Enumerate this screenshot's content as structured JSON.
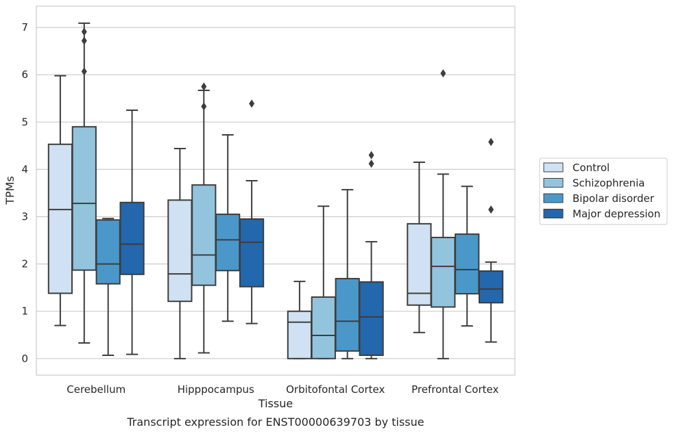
{
  "chart_data": {
    "type": "box",
    "caption": "Transcript expression for ENST00000639703 by tissue",
    "xlabel": "Tissue",
    "ylabel": "TPMs",
    "ylim": [
      -0.35,
      7.45
    ],
    "yticks": [
      0,
      1,
      2,
      3,
      4,
      5,
      6,
      7
    ],
    "grid": "horizontal",
    "legend_position": "right",
    "categories": [
      "Cerebellum",
      "Hipppocampus",
      "Orbitofontal Cortex",
      "Prefrontal Cortex"
    ],
    "series": [
      {
        "name": "Control",
        "color": "#cfe1f2",
        "boxes": [
          {
            "whislo": 0.7,
            "q1": 1.38,
            "med": 3.15,
            "q3": 4.53,
            "whishi": 5.98,
            "fliers": []
          },
          {
            "whislo": 0.0,
            "q1": 1.21,
            "med": 1.79,
            "q3": 3.35,
            "whishi": 4.44,
            "fliers": []
          },
          {
            "whislo": 0.0,
            "q1": 0.0,
            "med": 0.77,
            "q3": 1.0,
            "whishi": 1.63,
            "fliers": []
          },
          {
            "whislo": 0.55,
            "q1": 1.13,
            "med": 1.38,
            "q3": 2.85,
            "whishi": 4.15,
            "fliers": []
          }
        ]
      },
      {
        "name": "Schizophrenia",
        "color": "#93c4de",
        "boxes": [
          {
            "whislo": 0.33,
            "q1": 1.87,
            "med": 3.28,
            "q3": 4.9,
            "whishi": 7.09,
            "fliers": [
              6.07,
              6.72,
              6.91
            ]
          },
          {
            "whislo": 0.12,
            "q1": 1.55,
            "med": 2.19,
            "q3": 3.67,
            "whishi": 5.67,
            "fliers": [
              5.33,
              5.75
            ]
          },
          {
            "whislo": 0.0,
            "q1": 0.0,
            "med": 0.49,
            "q3": 1.3,
            "whishi": 3.22,
            "fliers": []
          },
          {
            "whislo": 0.0,
            "q1": 1.09,
            "med": 1.95,
            "q3": 2.56,
            "whishi": 3.9,
            "fliers": [
              6.03
            ]
          }
        ]
      },
      {
        "name": "Bipolar disorder",
        "color": "#4a98c9",
        "boxes": [
          {
            "whislo": 0.07,
            "q1": 1.58,
            "med": 2.0,
            "q3": 2.93,
            "whishi": 2.96,
            "fliers": []
          },
          {
            "whislo": 0.79,
            "q1": 1.86,
            "med": 2.51,
            "q3": 3.05,
            "whishi": 4.73,
            "fliers": []
          },
          {
            "whislo": 0.0,
            "q1": 0.16,
            "med": 0.79,
            "q3": 1.69,
            "whishi": 3.57,
            "fliers": []
          },
          {
            "whislo": 0.69,
            "q1": 1.37,
            "med": 1.88,
            "q3": 2.63,
            "whishi": 3.64,
            "fliers": []
          }
        ]
      },
      {
        "name": "Major depression",
        "color": "#2367ad",
        "boxes": [
          {
            "whislo": 0.09,
            "q1": 1.78,
            "med": 2.42,
            "q3": 3.3,
            "whishi": 5.25,
            "fliers": []
          },
          {
            "whislo": 0.74,
            "q1": 1.52,
            "med": 2.46,
            "q3": 2.95,
            "whishi": 3.76,
            "fliers": [
              5.39
            ]
          },
          {
            "whislo": 0.0,
            "q1": 0.07,
            "med": 0.88,
            "q3": 1.62,
            "whishi": 2.47,
            "fliers": [
              4.12,
              4.3
            ]
          },
          {
            "whislo": 0.35,
            "q1": 1.18,
            "med": 1.47,
            "q3": 1.85,
            "whishi": 2.04,
            "fliers": [
              3.15,
              4.58
            ]
          }
        ]
      }
    ]
  }
}
